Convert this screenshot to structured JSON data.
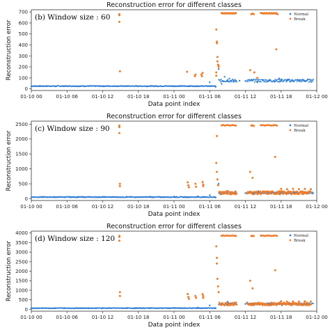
{
  "chart_data": [
    {
      "type": "scatter",
      "title": "Reconstruction error for different classes",
      "annotation": "(b) Window size : 60",
      "xlabel": "Data point index",
      "ylabel": "Reconstruction error",
      "xticks": [
        "01-10 00",
        "01-10 06",
        "01-10 12",
        "01-10 18",
        "01-11 00",
        "01-11 06",
        "01-11 12",
        "01-11 18",
        "01-12 00"
      ],
      "xlim": [
        0,
        48
      ],
      "ylim": [
        -15,
        720
      ],
      "yticks": [
        "0",
        "100",
        "200",
        "300",
        "400",
        "500",
        "600",
        "700"
      ],
      "legend": {
        "position": "top-right",
        "entries": [
          "Normal",
          "Break"
        ]
      },
      "normal_level": 25,
      "normal_spread": 4,
      "normal_post_level": 75,
      "series": [
        {
          "name": "Normal",
          "color": "#2f7fd6",
          "points": [
            [
              0,
              22
            ],
            [
              4,
              22
            ],
            [
              8,
              23
            ],
            [
              12,
              23
            ],
            [
              16,
              24
            ],
            [
              20,
              25
            ],
            [
              24,
              25
            ],
            [
              28,
              26
            ],
            [
              30,
              60
            ],
            [
              31,
              18
            ],
            [
              32,
              45
            ],
            [
              33,
              80
            ],
            [
              34,
              65
            ],
            [
              35,
              75
            ],
            [
              36,
              72
            ],
            [
              37,
              78
            ],
            [
              38,
              60
            ],
            [
              39,
              80
            ],
            [
              40,
              74
            ],
            [
              41,
              70
            ],
            [
              42,
              85
            ],
            [
              43,
              75
            ],
            [
              44,
              72
            ],
            [
              45,
              78
            ],
            [
              46,
              70
            ],
            [
              47,
              80
            ],
            [
              31.5,
              180
            ],
            [
              32.5,
              110
            ],
            [
              33.3,
              95
            ],
            [
              41.7,
              95
            ]
          ]
        },
        {
          "name": "Break",
          "color": "#f07c2a",
          "points": [
            [
              14.8,
              680
            ],
            [
              14.8,
              670
            ],
            [
              14.8,
              610
            ],
            [
              14.9,
              160
            ],
            [
              26.2,
              155
            ],
            [
              27.5,
              115
            ],
            [
              27.6,
              130
            ],
            [
              28.6,
              130
            ],
            [
              28.7,
              115
            ],
            [
              28.8,
              145
            ],
            [
              31.1,
              150
            ],
            [
              31.1,
              120
            ],
            [
              31.1,
              540
            ],
            [
              31.2,
              430
            ],
            [
              31.2,
              415
            ],
            [
              31.3,
              290
            ],
            [
              31.3,
              250
            ],
            [
              31.4,
              220
            ],
            [
              31.5,
              210
            ],
            [
              31.5,
              200
            ],
            [
              32.0,
              690
            ],
            [
              32.2,
              685
            ],
            [
              32.4,
              690
            ],
            [
              32.6,
              685
            ],
            [
              32.8,
              690
            ],
            [
              33.0,
              685
            ],
            [
              33.2,
              690
            ],
            [
              33.4,
              685
            ],
            [
              33.6,
              690
            ],
            [
              33.8,
              685
            ],
            [
              34.0,
              690
            ],
            [
              34.2,
              685
            ],
            [
              34.4,
              690
            ],
            [
              37.0,
              680
            ],
            [
              37.2,
              685
            ],
            [
              37.4,
              680
            ],
            [
              38.6,
              690
            ],
            [
              38.8,
              690
            ],
            [
              39.0,
              685
            ],
            [
              39.2,
              690
            ],
            [
              39.4,
              685
            ],
            [
              39.6,
              690
            ],
            [
              39.8,
              685
            ],
            [
              40.0,
              690
            ],
            [
              40.2,
              685
            ],
            [
              40.4,
              690
            ],
            [
              40.6,
              685
            ],
            [
              40.8,
              690
            ],
            [
              41.0,
              685
            ],
            [
              41.2,
              690
            ],
            [
              41.4,
              680
            ],
            [
              36.8,
              170
            ],
            [
              37.5,
              150
            ],
            [
              38.0,
              100
            ],
            [
              41.2,
              360
            ]
          ]
        }
      ]
    },
    {
      "type": "scatter",
      "title": "Reconstruction error for different classes",
      "annotation": "(c) Window size : 90",
      "xlabel": "Data point index",
      "ylabel": "Reconstruction error",
      "xticks": [
        "01-10 00",
        "01-10 06",
        "01-10 12",
        "01-10 18",
        "01-11 00",
        "01-11 06",
        "01-11 12",
        "01-11 18",
        "01-12 00"
      ],
      "xlim": [
        0,
        48
      ],
      "ylim": [
        -60,
        2600
      ],
      "yticks": [
        "0",
        "500",
        "1000",
        "1500",
        "2000",
        "2500"
      ],
      "legend": {
        "position": "top-right",
        "entries": [
          "Normal",
          "Break"
        ]
      },
      "normal_level": 55,
      "normal_spread": 15,
      "normal_post_level": 200,
      "series": [
        {
          "name": "Normal",
          "color": "#2f7fd6",
          "points": [
            [
              0,
              50
            ],
            [
              4,
              52
            ],
            [
              8,
              55
            ],
            [
              12,
              60
            ],
            [
              16,
              65
            ],
            [
              20,
              70
            ],
            [
              24,
              75
            ],
            [
              28,
              80
            ],
            [
              30,
              120
            ],
            [
              31,
              40
            ],
            [
              32,
              150
            ],
            [
              34,
              200
            ],
            [
              36,
              190
            ],
            [
              38,
              180
            ],
            [
              40,
              200
            ],
            [
              42,
              210
            ],
            [
              44,
              195
            ],
            [
              46,
              200
            ],
            [
              31.5,
              500
            ],
            [
              33,
              260
            ]
          ]
        },
        {
          "name": "Break",
          "color": "#f07c2a",
          "points": [
            [
              14.8,
              2450
            ],
            [
              14.8,
              2400
            ],
            [
              14.8,
              2200
            ],
            [
              14.9,
              500
            ],
            [
              14.9,
              420
            ],
            [
              26.3,
              550
            ],
            [
              26.4,
              450
            ],
            [
              26.5,
              380
            ],
            [
              27.6,
              500
            ],
            [
              27.7,
              400
            ],
            [
              28.8,
              560
            ],
            [
              28.9,
              480
            ],
            [
              28.9,
              420
            ],
            [
              31.1,
              1200
            ],
            [
              31.2,
              900
            ],
            [
              31.3,
              650
            ],
            [
              31.4,
              450
            ],
            [
              31.2,
              2100
            ],
            [
              32.0,
              2460
            ],
            [
              32.3,
              2470
            ],
            [
              32.6,
              2450
            ],
            [
              32.9,
              2470
            ],
            [
              33.2,
              2460
            ],
            [
              33.5,
              2450
            ],
            [
              33.8,
              2470
            ],
            [
              34.1,
              2460
            ],
            [
              34.4,
              2450
            ],
            [
              37.0,
              2450
            ],
            [
              37.2,
              2460
            ],
            [
              37.4,
              2440
            ],
            [
              38.6,
              2460
            ],
            [
              38.9,
              2470
            ],
            [
              39.2,
              2450
            ],
            [
              39.5,
              2460
            ],
            [
              39.8,
              2470
            ],
            [
              40.1,
              2460
            ],
            [
              40.4,
              2450
            ],
            [
              40.7,
              2460
            ],
            [
              41.0,
              2470
            ],
            [
              41.3,
              2450
            ],
            [
              36.8,
              900
            ],
            [
              37.2,
              700
            ],
            [
              41.0,
              1400
            ],
            [
              42.0,
              330
            ],
            [
              43.0,
              320
            ],
            [
              44.0,
              330
            ],
            [
              45.0,
              320
            ],
            [
              46.0,
              330
            ],
            [
              47.0,
              320
            ]
          ]
        }
      ]
    },
    {
      "type": "scatter",
      "title": "Reconstruction error for different classes",
      "annotation": "(d) Window size : 120",
      "xlabel": "Data point index",
      "ylabel": "Reconstruction error",
      "xticks": [
        "01-10 00",
        "01-10 06",
        "01-10 12",
        "01-10 18",
        "01-11 00",
        "01-11 06",
        "01-11 12",
        "01-11 18",
        "01-12 00"
      ],
      "xlim": [
        0,
        48
      ],
      "ylim": [
        -100,
        4100
      ],
      "yticks": [
        "0",
        "500",
        "1000",
        "1500",
        "2000",
        "2500",
        "3000",
        "3500",
        "4000"
      ],
      "legend": {
        "position": "top-right",
        "entries": [
          "Normal",
          "Break"
        ]
      },
      "normal_level": 60,
      "normal_spread": 20,
      "normal_post_level": 280,
      "series": [
        {
          "name": "Normal",
          "color": "#2f7fd6",
          "points": [
            [
              0,
              50
            ],
            [
              4,
              55
            ],
            [
              8,
              60
            ],
            [
              12,
              65
            ],
            [
              16,
              70
            ],
            [
              20,
              75
            ],
            [
              24,
              80
            ],
            [
              28,
              90
            ],
            [
              30,
              200
            ],
            [
              31,
              60
            ],
            [
              32,
              260
            ],
            [
              34,
              300
            ],
            [
              36,
              280
            ],
            [
              38,
              270
            ],
            [
              40,
              290
            ],
            [
              42,
              300
            ],
            [
              44,
              285
            ],
            [
              46,
              290
            ],
            [
              31.5,
              900
            ],
            [
              33,
              400
            ]
          ]
        },
        {
          "name": "Break",
          "color": "#f07c2a",
          "points": [
            [
              14.8,
              3850
            ],
            [
              14.8,
              3800
            ],
            [
              14.8,
              3600
            ],
            [
              14.9,
              900
            ],
            [
              14.9,
              700
            ],
            [
              26.3,
              800
            ],
            [
              26.4,
              650
            ],
            [
              26.5,
              550
            ],
            [
              27.6,
              700
            ],
            [
              27.7,
              600
            ],
            [
              28.8,
              800
            ],
            [
              28.9,
              700
            ],
            [
              28.9,
              600
            ],
            [
              31.1,
              3300
            ],
            [
              31.2,
              2700
            ],
            [
              31.2,
              2400
            ],
            [
              31.3,
              1600
            ],
            [
              31.4,
              1200
            ],
            [
              31.5,
              900
            ],
            [
              32.0,
              3860
            ],
            [
              32.3,
              3870
            ],
            [
              32.6,
              3850
            ],
            [
              32.9,
              3870
            ],
            [
              33.2,
              3860
            ],
            [
              33.5,
              3850
            ],
            [
              33.8,
              3870
            ],
            [
              34.1,
              3860
            ],
            [
              34.4,
              3850
            ],
            [
              37.0,
              3850
            ],
            [
              37.2,
              3860
            ],
            [
              37.4,
              3840
            ],
            [
              38.6,
              3860
            ],
            [
              38.9,
              3870
            ],
            [
              39.2,
              3850
            ],
            [
              39.5,
              3860
            ],
            [
              39.8,
              3870
            ],
            [
              40.1,
              3860
            ],
            [
              40.4,
              3850
            ],
            [
              40.7,
              3860
            ],
            [
              41.0,
              3870
            ],
            [
              41.3,
              3850
            ],
            [
              36.8,
              1500
            ],
            [
              37.2,
              1100
            ],
            [
              41.0,
              2050
            ],
            [
              42.0,
              420
            ],
            [
              43.0,
              400
            ],
            [
              44.0,
              410
            ],
            [
              45.0,
              400
            ],
            [
              46.0,
              420
            ],
            [
              47.0,
              400
            ]
          ]
        }
      ]
    }
  ]
}
